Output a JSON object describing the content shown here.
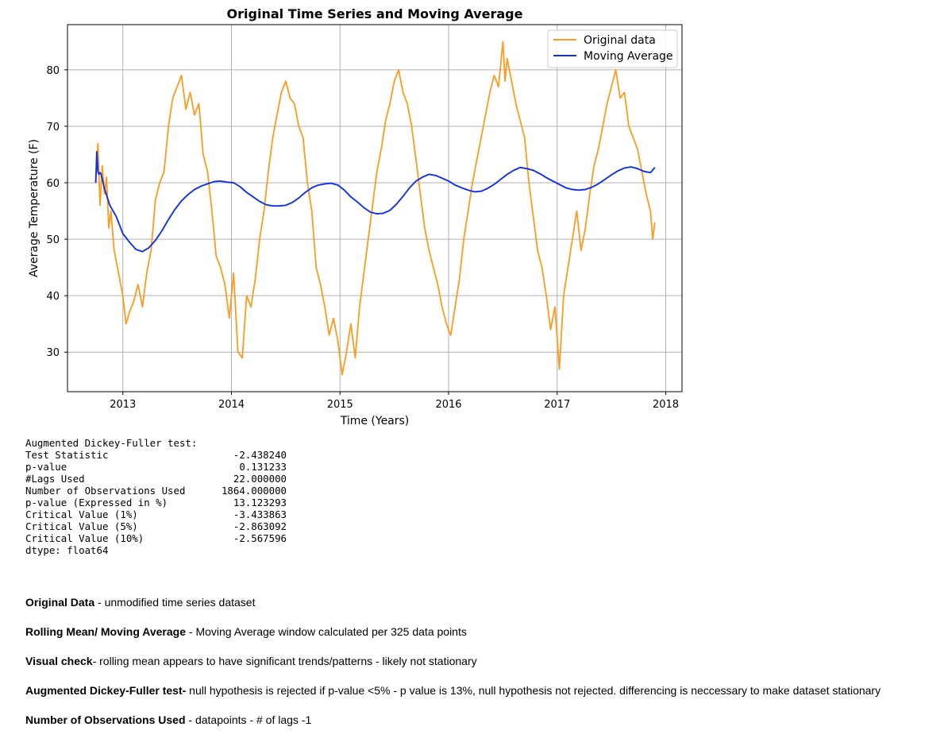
{
  "chart_data": {
    "type": "line",
    "title": "Original Time Series and Moving Average",
    "xlabel": "Time (Years)",
    "ylabel": "Average Temperature (F)",
    "xlim": [
      2012.49,
      2018.15
    ],
    "ylim": [
      23.0,
      88.0
    ],
    "x_ticks": [
      2013,
      2014,
      2015,
      2016,
      2017,
      2018
    ],
    "y_ticks": [
      30,
      40,
      50,
      60,
      70,
      80
    ],
    "grid": true,
    "legend_position": "top-right",
    "colors": {
      "original": "#ff9a1f",
      "moving_average": "#1030e8",
      "grid": "#b0b0b0"
    },
    "series": [
      {
        "name": "Original data",
        "x": [
          2012.75,
          2012.77,
          2012.79,
          2012.81,
          2012.83,
          2012.85,
          2012.87,
          2012.89,
          2012.92,
          2012.96,
          2013.0,
          2013.03,
          2013.06,
          2013.1,
          2013.14,
          2013.18,
          2013.22,
          2013.26,
          2013.3,
          2013.34,
          2013.38,
          2013.42,
          2013.46,
          2013.5,
          2013.54,
          2013.58,
          2013.62,
          2013.66,
          2013.7,
          2013.74,
          2013.78,
          2013.82,
          2013.86,
          2013.9,
          2013.94,
          2013.98,
          2014.02,
          2014.06,
          2014.1,
          2014.14,
          2014.18,
          2014.22,
          2014.26,
          2014.3,
          2014.34,
          2014.38,
          2014.42,
          2014.46,
          2014.5,
          2014.54,
          2014.58,
          2014.62,
          2014.66,
          2014.7,
          2014.74,
          2014.78,
          2014.82,
          2014.86,
          2014.9,
          2014.94,
          2014.98,
          2015.02,
          2015.06,
          2015.1,
          2015.14,
          2015.18,
          2015.22,
          2015.26,
          2015.3,
          2015.34,
          2015.38,
          2015.42,
          2015.46,
          2015.5,
          2015.54,
          2015.58,
          2015.62,
          2015.66,
          2015.7,
          2015.74,
          2015.78,
          2015.82,
          2015.86,
          2015.9,
          2015.94,
          2015.98,
          2016.02,
          2016.06,
          2016.1,
          2016.14,
          2016.18,
          2016.22,
          2016.26,
          2016.3,
          2016.34,
          2016.38,
          2016.42,
          2016.46,
          2016.5,
          2016.52,
          2016.54,
          2016.58,
          2016.62,
          2016.66,
          2016.7,
          2016.74,
          2016.78,
          2016.82,
          2016.86,
          2016.9,
          2016.94,
          2016.98,
          2017.02,
          2017.06,
          2017.1,
          2017.14,
          2017.18,
          2017.22,
          2017.26,
          2017.3,
          2017.34,
          2017.38,
          2017.42,
          2017.46,
          2017.5,
          2017.54,
          2017.58,
          2017.62,
          2017.66,
          2017.7,
          2017.74,
          2017.78,
          2017.82,
          2017.86,
          2017.88,
          2017.9
        ],
        "values": [
          60,
          67,
          56,
          63,
          58,
          61,
          52,
          55,
          48,
          44,
          40,
          35,
          37,
          39,
          42,
          38,
          44,
          48,
          57,
          60,
          62,
          70,
          75,
          77,
          79,
          73,
          76,
          72,
          74,
          65,
          62,
          55,
          47,
          45,
          42,
          36,
          44,
          30,
          29,
          40,
          38,
          43,
          50,
          55,
          62,
          68,
          72,
          76,
          78,
          75,
          74,
          70,
          68,
          60,
          55,
          45,
          42,
          38,
          33,
          36,
          32,
          26,
          30,
          35,
          29,
          38,
          44,
          50,
          56,
          62,
          66,
          71,
          74,
          78,
          80,
          76,
          74,
          70,
          64,
          58,
          52,
          48,
          45,
          42,
          38,
          35,
          33,
          38,
          43,
          50,
          55,
          60,
          64,
          68,
          72,
          76,
          79,
          77,
          85,
          78,
          82,
          78,
          74,
          71,
          68,
          60,
          54,
          48,
          45,
          40,
          34,
          38,
          27,
          40,
          45,
          50,
          55,
          48,
          52,
          58,
          63,
          66,
          70,
          74,
          77,
          80,
          75,
          76,
          70,
          68,
          66,
          62,
          58,
          55,
          50,
          53
        ]
      },
      {
        "name": "Moving Average",
        "x": [
          2012.75,
          2012.76,
          2012.77,
          2012.78,
          2012.79,
          2012.8,
          2012.83,
          2012.88,
          2012.94,
          2013.0,
          2013.06,
          2013.12,
          2013.18,
          2013.24,
          2013.3,
          2013.36,
          2013.42,
          2013.48,
          2013.54,
          2013.6,
          2013.66,
          2013.72,
          2013.78,
          2013.84,
          2013.9,
          2013.96,
          2014.02,
          2014.08,
          2014.14,
          2014.2,
          2014.26,
          2014.32,
          2014.38,
          2014.44,
          2014.5,
          2014.56,
          2014.62,
          2014.68,
          2014.74,
          2014.8,
          2014.86,
          2014.92,
          2014.98,
          2015.04,
          2015.1,
          2015.16,
          2015.22,
          2015.28,
          2015.34,
          2015.4,
          2015.46,
          2015.52,
          2015.58,
          2015.64,
          2015.7,
          2015.76,
          2015.82,
          2015.88,
          2015.94,
          2016.0,
          2016.06,
          2016.12,
          2016.18,
          2016.24,
          2016.3,
          2016.36,
          2016.42,
          2016.48,
          2016.54,
          2016.6,
          2016.66,
          2016.72,
          2016.78,
          2016.84,
          2016.9,
          2016.96,
          2017.02,
          2017.08,
          2017.14,
          2017.2,
          2017.26,
          2017.32,
          2017.38,
          2017.44,
          2017.5,
          2017.56,
          2017.62,
          2017.68,
          2017.74,
          2017.8,
          2017.86,
          2017.9
        ],
        "values": [
          60,
          65.5,
          62,
          61.5,
          61.8,
          61.5,
          59,
          56,
          54,
          51,
          49.5,
          48.2,
          47.8,
          48.5,
          49.8,
          51.5,
          53.5,
          55.3,
          56.8,
          57.9,
          58.8,
          59.4,
          59.8,
          60.2,
          60.3,
          60.1,
          60,
          59.3,
          58.3,
          57.5,
          56.7,
          56.1,
          55.9,
          55.9,
          56,
          56.5,
          57.3,
          58.3,
          59.1,
          59.6,
          59.8,
          59.9,
          59.6,
          58.7,
          57.5,
          56.6,
          55.6,
          54.8,
          54.5,
          54.6,
          55.1,
          56.2,
          57.6,
          59.1,
          60.3,
          61,
          61.5,
          61.3,
          60.8,
          60.3,
          59.6,
          59.1,
          58.7,
          58.4,
          58.5,
          59,
          59.7,
          60.6,
          61.5,
          62.2,
          62.7,
          62.5,
          62.2,
          61.6,
          60.9,
          60.3,
          59.7,
          59.1,
          58.8,
          58.7,
          58.8,
          59.2,
          59.8,
          60.6,
          61.4,
          62.1,
          62.6,
          62.8,
          62.5,
          62,
          61.8,
          62.7
        ]
      }
    ]
  },
  "adf": {
    "header": "Augmented Dickey-Fuller test:",
    "rows": [
      {
        "label": "Test Statistic",
        "value": "-2.438240"
      },
      {
        "label": "p-value",
        "value": "0.131233"
      },
      {
        "label": "#Lags Used",
        "value": "22.000000"
      },
      {
        "label": "Number of Observations Used",
        "value": "1864.000000"
      },
      {
        "label": "p-value (Expressed in %)",
        "value": "13.123293"
      },
      {
        "label": "Critical Value (1%)",
        "value": "-3.433863"
      },
      {
        "label": "Critical Value (5%)",
        "value": "-2.863092"
      },
      {
        "label": "Critical Value (10%)",
        "value": "-2.567596"
      }
    ],
    "dtype": "dtype: float64"
  },
  "notes": [
    {
      "term": "Original Data",
      "text": " - unmodified time series dataset"
    },
    {
      "term": "Rolling Mean/ Moving Average",
      "text": " - Moving Average window calculated per 325 data points"
    },
    {
      "term": "Visual check",
      "text": "- rolling mean appears to have significant trends/patterns - likely not stationary"
    },
    {
      "term": "Augmented Dickey-Fuller test-",
      "text": " null hypothesis is rejected if p-value <5% - p value is 13%, null hypothesis not rejected. differencing is neccessary to make dataset stationary"
    },
    {
      "term": "Number of Observations Used",
      "text": " - datapoints - # of lags -1"
    }
  ]
}
